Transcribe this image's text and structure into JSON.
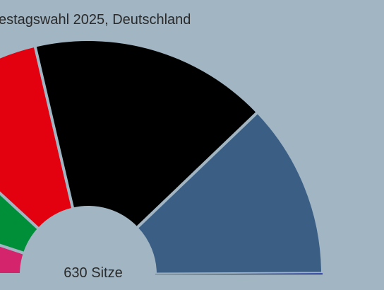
{
  "chart_data": {
    "type": "parliament",
    "title": "estagswahl 2025, Deutschland",
    "center_label": "630 Sitze",
    "values": [
      64,
      85,
      120,
      208,
      152,
      1
    ],
    "colors": [
      "#d4246c",
      "#008f39",
      "#e3000f",
      "#000000",
      "#3a5e84",
      "#0a1fa8"
    ]
  }
}
